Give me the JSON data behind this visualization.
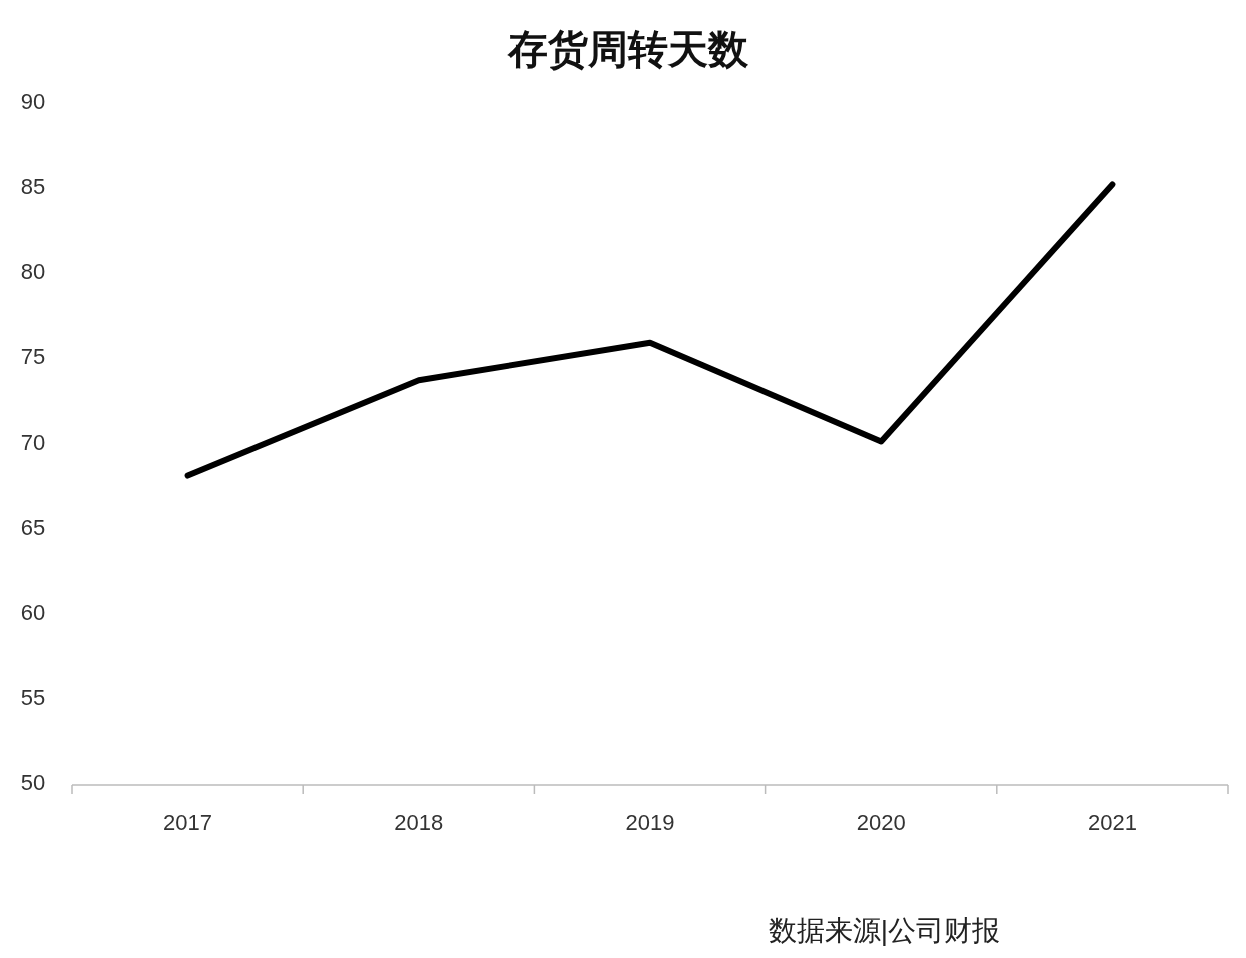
{
  "chart_data": {
    "type": "line",
    "title": "存货周转天数",
    "categories": [
      "2017",
      "2018",
      "2019",
      "2020",
      "2021"
    ],
    "series": [
      {
        "color": "#000000",
        "values": [
          68.0,
          73.6,
          75.8,
          70.0,
          85.1
        ]
      }
    ],
    "ylim": [
      50,
      90
    ],
    "yticks": [
      50,
      55,
      60,
      65,
      70,
      75,
      80,
      85,
      90
    ],
    "annotations": [
      "数据来源|公司财报"
    ]
  }
}
